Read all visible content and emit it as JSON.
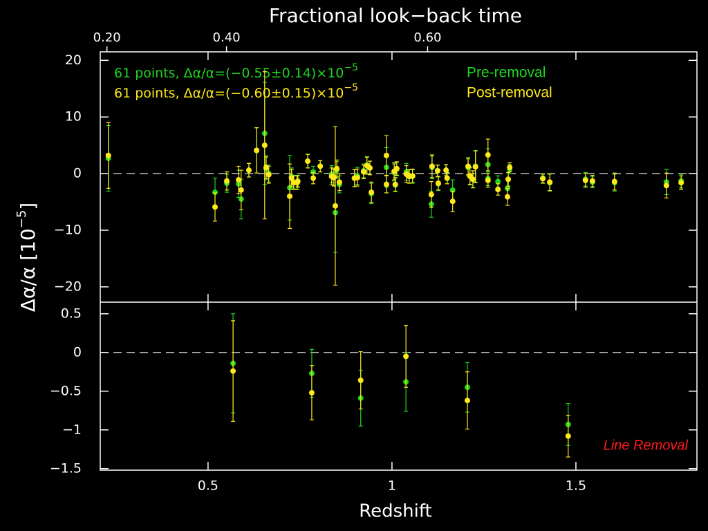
{
  "chart_data": [
    {
      "type": "scatter",
      "x2label": "Fractional look−back time",
      "x2ticks": [
        {
          "value": 0.2,
          "label": "0.20"
        },
        {
          "value": 0.4,
          "label": "0.40"
        },
        {
          "value": 0.6,
          "label": "0.60"
        }
      ],
      "ylabel": "Δα/α [10",
      "ylabel_exp": "−5",
      "ylabel_end": "]",
      "xlim": [
        0.207,
        1.829
      ],
      "ylim": [
        -22.7,
        21.5
      ],
      "yticks": [
        {
          "value": 20,
          "label": "20"
        },
        {
          "value": 10,
          "label": "10"
        },
        {
          "value": 0,
          "label": "0"
        },
        {
          "value": -10,
          "label": "−10"
        },
        {
          "value": -20,
          "label": "−20"
        }
      ],
      "hline": 0,
      "legend": "upper left",
      "x": [
        0.229,
        0.519,
        0.551,
        0.583,
        0.59,
        0.611,
        0.632,
        0.654,
        0.658,
        0.665,
        0.722,
        0.727,
        0.733,
        0.742,
        0.744,
        0.771,
        0.786,
        0.805,
        0.836,
        0.842,
        0.846,
        0.85,
        0.857,
        0.898,
        0.906,
        0.923,
        0.932,
        0.94,
        0.944,
        0.985,
        0.985,
        1.006,
        1.009,
        1.013,
        1.039,
        1.047,
        1.056,
        1.107,
        1.109,
        1.124,
        1.126,
        1.147,
        1.15,
        1.165,
        1.207,
        1.212,
        1.22,
        1.227,
        1.261,
        1.261,
        1.288,
        1.314,
        1.316,
        1.32,
        1.41,
        1.429,
        1.526,
        1.545,
        1.605,
        1.746,
        1.786
      ],
      "series": [
        {
          "name": "Pre-removal",
          "color": "#1fd61f",
          "legend_text": "61 points, Δα/α=(−0.55±0.14)×10",
          "legend_exp": "−5",
          "values": [
            2.7,
            -3.3,
            -1.7,
            -1.8,
            -4.5,
            0.6,
            4.1,
            7.1,
            0.9,
            0.0,
            -2.5,
            -0.5,
            -1.5,
            -1.6,
            -1.3,
            2.2,
            0.3,
            1.3,
            -0.1,
            -0.6,
            -6.9,
            0.6,
            -1.9,
            -0.8,
            -0.4,
            0.5,
            1.5,
            1.0,
            -3.5,
            1.1,
            -1.9,
            0.2,
            -2.0,
            0.8,
            0.3,
            -0.5,
            -0.5,
            -5.4,
            1.1,
            0.5,
            -1.8,
            0.6,
            -0.8,
            -2.9,
            1.1,
            -0.5,
            -1.0,
            1.3,
            1.6,
            -0.9,
            -1.4,
            -2.6,
            -1.0,
            0.8,
            -0.8,
            -1.6,
            -1.0,
            -1.5,
            -1.6,
            -1.5,
            -1.3
          ],
          "errors": [
            5.8,
            2.5,
            1.6,
            2.4,
            3.5,
            1.2,
            4.0,
            9,
            2.0,
            1.5,
            5.7,
            1.5,
            1.2,
            1.2,
            1.0,
            1.2,
            1.0,
            1.0,
            1.5,
            1.5,
            7,
            1.5,
            1.5,
            1.5,
            1.5,
            1.2,
            1.5,
            1.2,
            1.8,
            3.5,
            1.5,
            1.5,
            1.2,
            1.2,
            1.5,
            1.2,
            1.2,
            2.3,
            2.0,
            1.0,
            1.2,
            1.0,
            1.0,
            1.8,
            1.5,
            1.5,
            1.5,
            2.8,
            2.8,
            1.2,
            1.0,
            1.5,
            1.2,
            0.8,
            0.8,
            1.5,
            1.2,
            1.0,
            1.5,
            2.2,
            1.2
          ]
        },
        {
          "name": "Post-removal",
          "color": "#ffe81a",
          "legend_text": "61 points, Δα/α=(−0.60±0.15)×10",
          "legend_exp": "−5",
          "values": [
            3.2,
            -5.9,
            -1.3,
            -1.1,
            -2.9,
            0.6,
            4.1,
            5.0,
            1.1,
            -0.2,
            -4.0,
            -0.8,
            -1.6,
            -1.6,
            -1.4,
            2.2,
            -0.8,
            1.3,
            -0.5,
            -0.7,
            -5.7,
            0.9,
            -1.5,
            -0.8,
            -0.7,
            0.3,
            1.4,
            1.0,
            -3.3,
            3.2,
            -1.9,
            0.4,
            -1.9,
            0.9,
            -0.1,
            -0.5,
            -0.4,
            -3.7,
            1.3,
            0.5,
            -1.7,
            0.6,
            -0.8,
            -4.9,
            1.3,
            -0.4,
            -1.0,
            1.2,
            3.3,
            -1.2,
            -2.8,
            -4.1,
            -1.0,
            1.1,
            -0.9,
            -1.5,
            -1.2,
            -1.3,
            -1.4,
            -2.1,
            -1.6
          ],
          "errors": [
            5.8,
            2.5,
            1.6,
            2.4,
            3.5,
            1.2,
            4.0,
            13,
            2.0,
            1.5,
            5.7,
            1.5,
            1.2,
            1.2,
            1.0,
            1.2,
            1.0,
            1.0,
            1.5,
            1.5,
            14,
            1.5,
            1.5,
            1.5,
            1.5,
            1.2,
            1.5,
            1.2,
            1.8,
            3.5,
            1.5,
            1.5,
            1.2,
            1.2,
            1.5,
            1.2,
            1.2,
            2.3,
            2.0,
            1.0,
            1.2,
            1.0,
            1.0,
            1.8,
            1.5,
            1.5,
            1.5,
            2.8,
            2.8,
            1.2,
            1.0,
            1.5,
            1.2,
            0.8,
            0.8,
            1.5,
            1.2,
            1.0,
            1.5,
            2.2,
            1.2
          ]
        }
      ]
    },
    {
      "type": "scatter",
      "xlabel": "Redshift",
      "annotation": "Line Removal",
      "xlim": [
        0.207,
        1.829
      ],
      "ylim": [
        -1.52,
        0.65
      ],
      "xticks": [
        0.5,
        1,
        1.5
      ],
      "yticks": [
        {
          "value": 0.5,
          "label": "0.5"
        },
        {
          "value": 0,
          "label": "0"
        },
        {
          "value": -0.5,
          "label": "−0.5"
        },
        {
          "value": -1,
          "label": "−1"
        },
        {
          "value": -1.5,
          "label": "−1.5"
        }
      ],
      "hline": 0,
      "x": [
        0.568,
        0.782,
        0.915,
        1.038,
        1.205,
        1.479
      ],
      "series": [
        {
          "color": "#1fd61f",
          "values": [
            -0.14,
            -0.27,
            -0.59,
            -0.38,
            -0.45,
            -0.93
          ],
          "errors": [
            0.64,
            0.31,
            0.36,
            0.38,
            0.32,
            0.27
          ]
        },
        {
          "color": "#ffe81a",
          "values": [
            -0.24,
            -0.52,
            -0.36,
            -0.05,
            -0.62,
            -1.08
          ],
          "errors": [
            0.65,
            0.35,
            0.37,
            0.4,
            0.37,
            0.27
          ]
        }
      ]
    }
  ]
}
